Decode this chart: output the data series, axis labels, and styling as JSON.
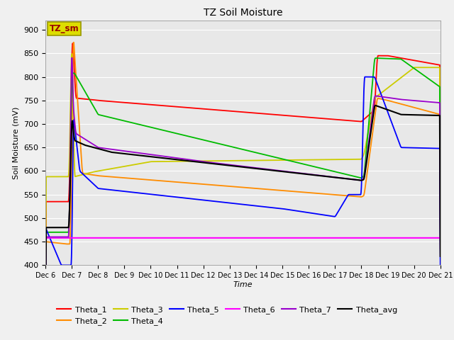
{
  "title": "TZ Soil Moisture",
  "xlabel": "Time",
  "ylabel": "Soil Moisture (mV)",
  "ylim": [
    400,
    920
  ],
  "yticks": [
    400,
    450,
    500,
    550,
    600,
    650,
    700,
    750,
    800,
    850,
    900
  ],
  "x_labels": [
    "Dec 6",
    "Dec 7",
    "Dec 8",
    "Dec 9",
    "Dec 10",
    "Dec 11",
    "Dec 12",
    "Dec 13",
    "Dec 14",
    "Dec 15",
    "Dec 16",
    "Dec 17",
    "Dec 18",
    "Dec 19",
    "Dec 20",
    "Dec 21"
  ],
  "num_points": 3000,
  "colors": {
    "Theta_1": "#ff0000",
    "Theta_2": "#ff8c00",
    "Theta_3": "#cccc00",
    "Theta_4": "#00bb00",
    "Theta_5": "#0000ff",
    "Theta_6": "#ff00ff",
    "Theta_7": "#9900cc",
    "Theta_avg": "#000000"
  },
  "bg_color": "#e8e8e8",
  "grid_color": "#ffffff",
  "label_box_facecolor": "#dddd00",
  "label_box_edgecolor": "#999900",
  "label_text": "TZ_sm",
  "label_text_color": "#990000"
}
